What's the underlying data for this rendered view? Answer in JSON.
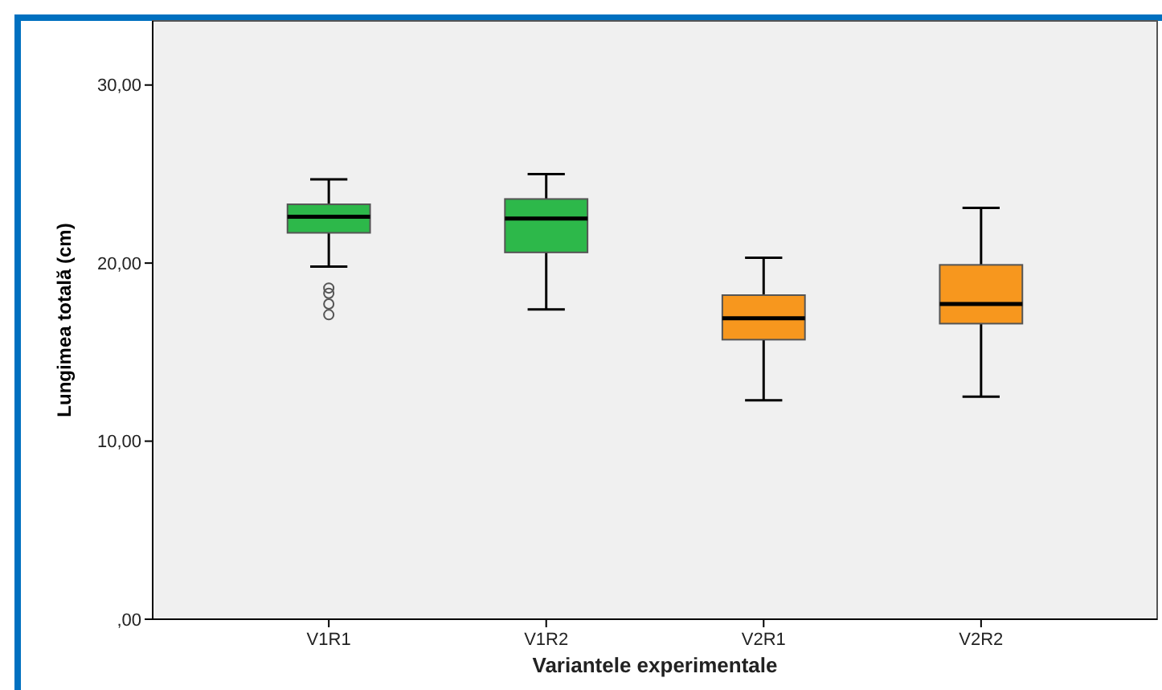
{
  "chart_data": {
    "type": "box",
    "xlabel": "Variantele experimentale",
    "ylabel": "Lungimea totală (cm)",
    "categories": [
      "V1R1",
      "V1R2",
      "V2R1",
      "V2R2"
    ],
    "boxes": [
      {
        "low": 19.8,
        "q1": 21.7,
        "median": 22.6,
        "q3": 23.3,
        "high": 24.7,
        "outliers": [
          18.6,
          18.3,
          17.7,
          17.1
        ]
      },
      {
        "low": 17.4,
        "q1": 20.6,
        "median": 22.5,
        "q3": 23.6,
        "high": 25.0
      },
      {
        "low": 12.3,
        "q1": 15.7,
        "median": 16.9,
        "q3": 18.2,
        "high": 20.3
      },
      {
        "low": 12.5,
        "q1": 16.6,
        "median": 17.7,
        "q3": 19.9,
        "high": 23.1
      }
    ],
    "colors": [
      "#2db84a",
      "#2db84a",
      "#f7971e",
      "#f7971e"
    ],
    "ylim": [
      0,
      33.6
    ],
    "yticks": [
      {
        "value": 0,
        "label": ",00"
      },
      {
        "value": 10,
        "label": "10,00"
      },
      {
        "value": 20,
        "label": "20,00"
      },
      {
        "value": 30,
        "label": "30,00"
      }
    ],
    "grid": false
  }
}
